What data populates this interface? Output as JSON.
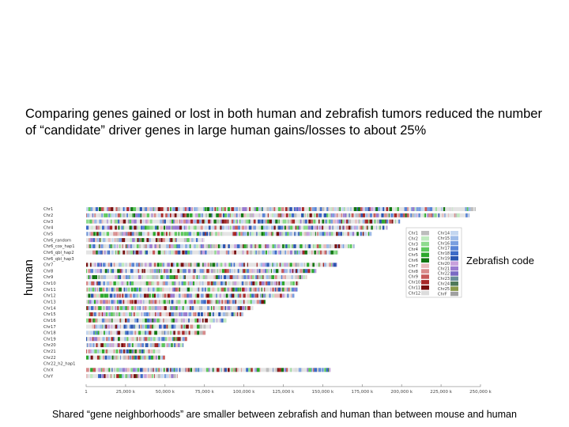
{
  "slide": {
    "title": "Comparing genes gained or lost in both human and zebrafish tumors reduced the number of “candidate” driver genes in large human gains/losses to about 25%",
    "ylabel": "human",
    "legend_title": "Zebrafish code",
    "footer": "Shared “gene neighborhoods” are smaller between zebrafish and human than between mouse and human"
  },
  "chart_data": {
    "type": "heatmap",
    "rows": [
      {
        "label": "Chr1",
        "length": 247
      },
      {
        "label": "Chr2",
        "length": 243
      },
      {
        "label": "Chr3",
        "length": 199
      },
      {
        "label": "Chr4",
        "length": 191
      },
      {
        "label": "Chr5",
        "length": 181
      },
      {
        "label": "Chr6_random",
        "length": 75
      },
      {
        "label": "Chr6_cox_hap1",
        "length": 170
      },
      {
        "label": "Chr6_qbl_hap2",
        "length": 160
      },
      {
        "label": "Chr6_qbl_hap3",
        "length": 0
      },
      {
        "label": "Chr7",
        "length": 159
      },
      {
        "label": "Chr8",
        "length": 146
      },
      {
        "label": "Chr9",
        "length": 140
      },
      {
        "label": "Chr10",
        "length": 135
      },
      {
        "label": "Chr11",
        "length": 134
      },
      {
        "label": "Chr12",
        "length": 132
      },
      {
        "label": "Chr13",
        "length": 114
      },
      {
        "label": "Chr14",
        "length": 106
      },
      {
        "label": "Chr15",
        "length": 100
      },
      {
        "label": "Chr16",
        "length": 89
      },
      {
        "label": "Chr17",
        "length": 79
      },
      {
        "label": "Chr18",
        "length": 76
      },
      {
        "label": "Chr19",
        "length": 64
      },
      {
        "label": "Chr20",
        "length": 62
      },
      {
        "label": "Chr21",
        "length": 47
      },
      {
        "label": "Chr22",
        "length": 50
      },
      {
        "label": "Chr22_h2_hap1",
        "length": 0
      },
      {
        "label": "ChrX",
        "length": 155
      },
      {
        "label": "ChrY",
        "length": 58
      }
    ],
    "x_ticks": [
      "1",
      "25,000 k",
      "50,000 k",
      "75,000 k",
      "100,000 k",
      "125,000 k",
      "150,000 k",
      "175,000 k",
      "200,000 k",
      "225,000 k",
      "250,000 k"
    ],
    "xlim": [
      0,
      250
    ],
    "legend": {
      "col1": [
        {
          "label": "Chr1",
          "color": "#bdbdbd"
        },
        {
          "label": "Chr2",
          "color": "#bfeabf"
        },
        {
          "label": "Chr3",
          "color": "#8edb8e"
        },
        {
          "label": "Chr4",
          "color": "#5dc95d"
        },
        {
          "label": "Chr5",
          "color": "#2da82d"
        },
        {
          "label": "Chr6",
          "color": "#127612"
        },
        {
          "label": "Chr7",
          "color": "#e8bcbc"
        },
        {
          "label": "Chr8",
          "color": "#d98c8c"
        },
        {
          "label": "Chr9",
          "color": "#c75a5a"
        },
        {
          "label": "Chr10",
          "color": "#a82828"
        },
        {
          "label": "Chr11",
          "color": "#781010"
        },
        {
          "label": "Chr12",
          "color": "#dcdcdc"
        }
      ],
      "col2": [
        {
          "label": "Chr14",
          "color": "#c3d6f0"
        },
        {
          "label": "Chr15",
          "color": "#9dbbe8"
        },
        {
          "label": "Chr16",
          "color": "#7a9fe0"
        },
        {
          "label": "Chr17",
          "color": "#5a85d6"
        },
        {
          "label": "Chr18",
          "color": "#3d6bc8"
        },
        {
          "label": "Chr19",
          "color": "#2a55b0"
        },
        {
          "label": "Chr20",
          "color": "#c9a0dc"
        },
        {
          "label": "Chr21",
          "color": "#9a7bd0"
        },
        {
          "label": "Chr22",
          "color": "#7a6ac4"
        },
        {
          "label": "Chr23",
          "color": "#6a8f9a"
        },
        {
          "label": "Chr24",
          "color": "#4f7a5a"
        },
        {
          "label": "Chr25",
          "color": "#8a9a4a"
        },
        {
          "label": "ChrF",
          "color": "#a0a0a0"
        }
      ]
    },
    "palette": [
      "#bdbdbd",
      "#bfeabf",
      "#8edb8e",
      "#5dc95d",
      "#2da82d",
      "#127612",
      "#e8bcbc",
      "#d98c8c",
      "#c75a5a",
      "#a82828",
      "#781010",
      "#dcdcdc",
      "#c3d6f0",
      "#9dbbe8",
      "#7a9fe0",
      "#5a85d6",
      "#3d6bc8",
      "#2a55b0",
      "#c9a0dc",
      "#9a7bd0"
    ]
  }
}
